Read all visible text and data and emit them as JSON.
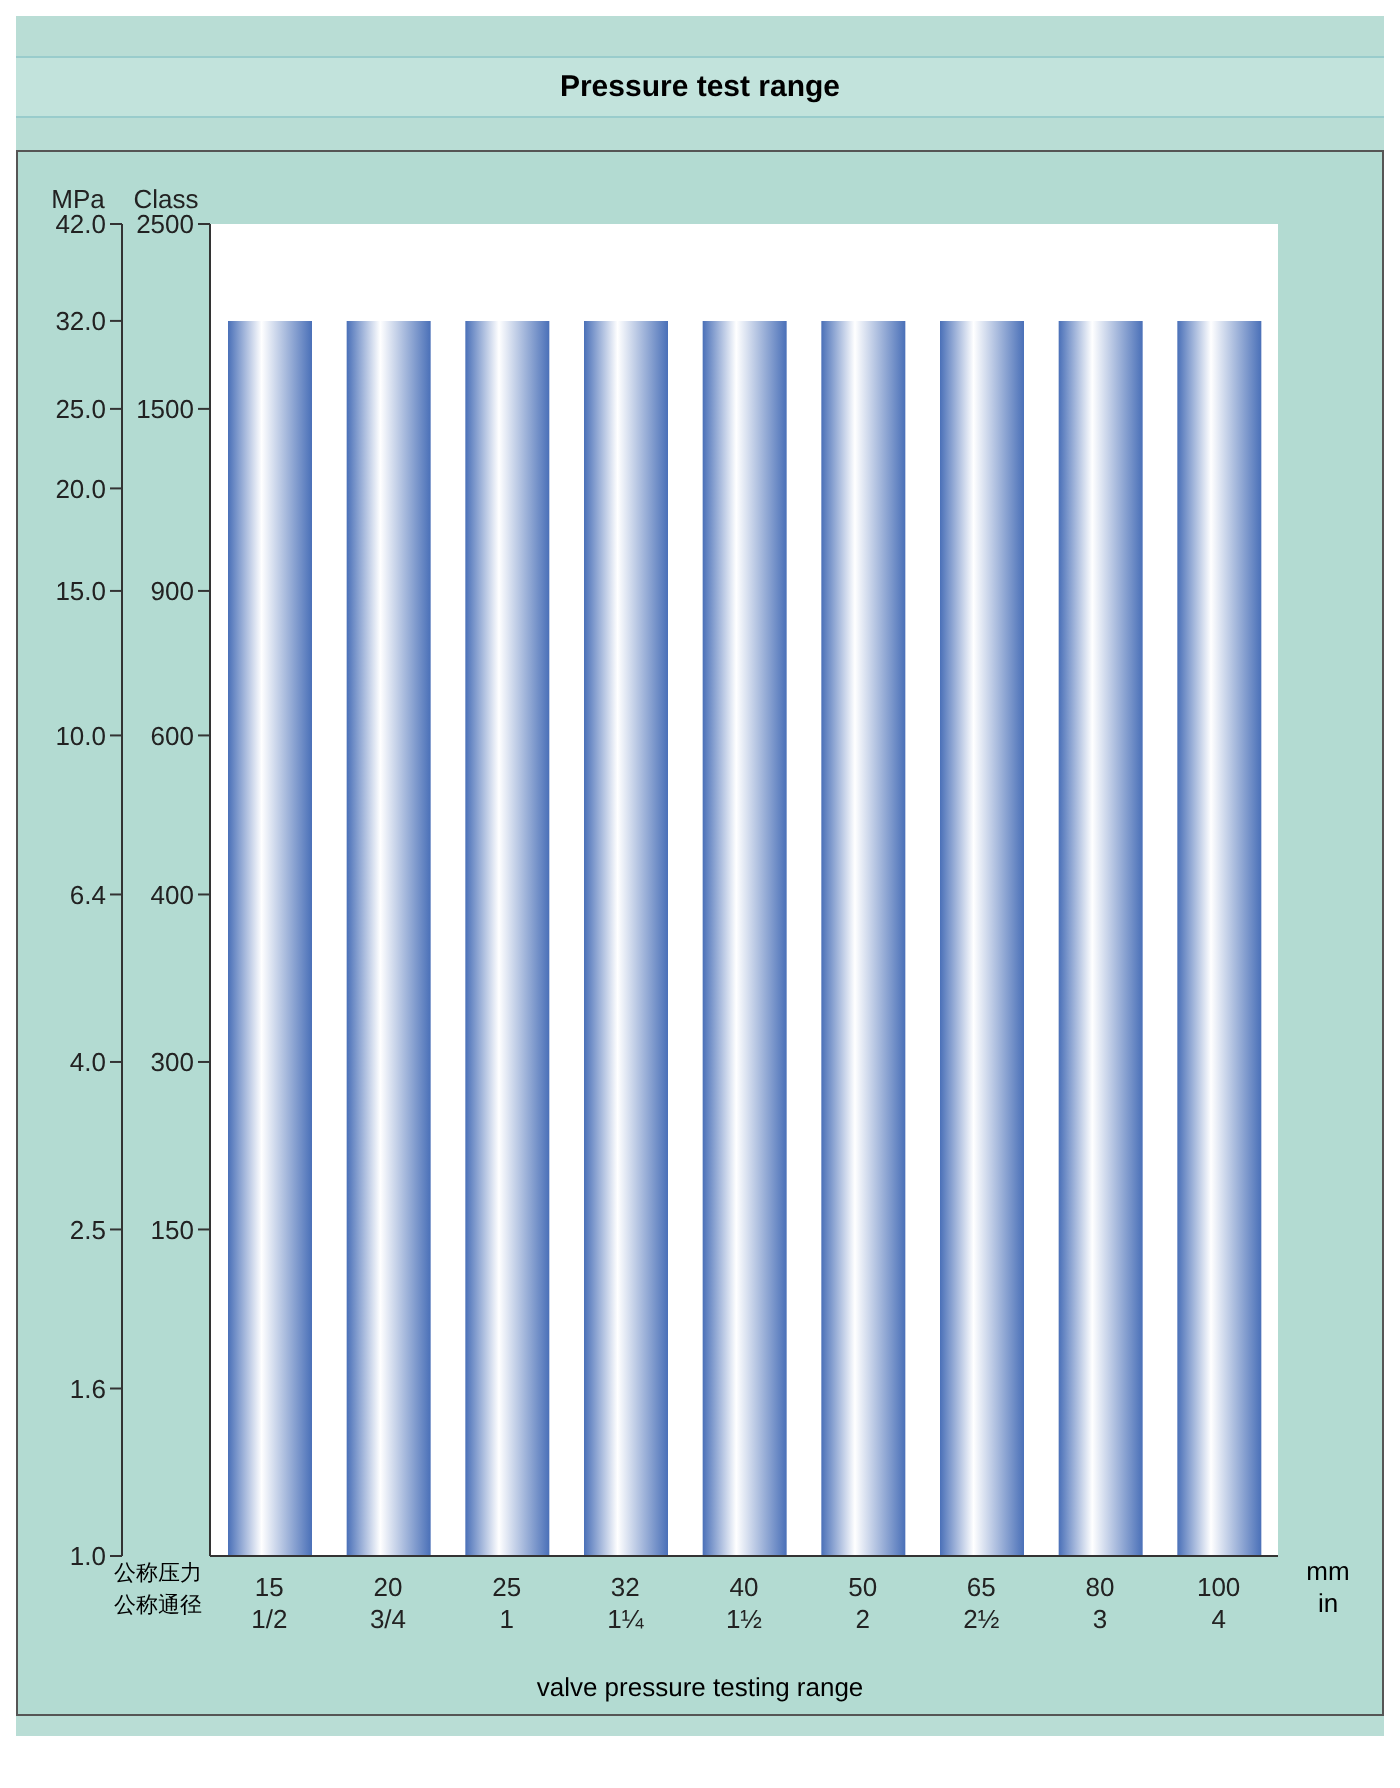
{
  "chart_data": {
    "type": "bar",
    "title": "Pressure test range",
    "categories": [
      "15",
      "20",
      "25",
      "32",
      "40",
      "50",
      "65",
      "80",
      "100"
    ],
    "series": [
      {
        "color": "#4a70b8",
        "values": [
          32,
          32,
          32,
          32,
          32,
          32,
          32,
          32,
          32
        ]
      }
    ],
    "ylabel": "MPa",
    "xlabel": "mm",
    "log": "y",
    "ylim": [
      1,
      42
    ],
    "yticks": [
      {
        "value": 1,
        "label": "1.0"
      },
      {
        "value": 1.6,
        "label": "1.6"
      },
      {
        "value": 2.5,
        "label": "2.5"
      },
      {
        "value": 4,
        "label": "4.0"
      },
      {
        "value": 6.4,
        "label": "6.4"
      },
      {
        "value": 10,
        "label": "10.0"
      },
      {
        "value": 15,
        "label": "15.0"
      },
      {
        "value": 20,
        "label": "20.0"
      },
      {
        "value": 25,
        "label": "25.0"
      },
      {
        "value": 32,
        "label": "32.0"
      },
      {
        "value": 42,
        "label": "42.0"
      }
    ],
    "annotations": [
      "公称压力",
      "公称通径",
      "in",
      "valve pressure testing range",
      "1/2",
      "3/4",
      "1",
      "1¼",
      "1½",
      "2",
      "2½",
      "3",
      "4",
      "Class",
      "150",
      "300",
      "400",
      "600",
      "900",
      "1500",
      "2500"
    ]
  }
}
